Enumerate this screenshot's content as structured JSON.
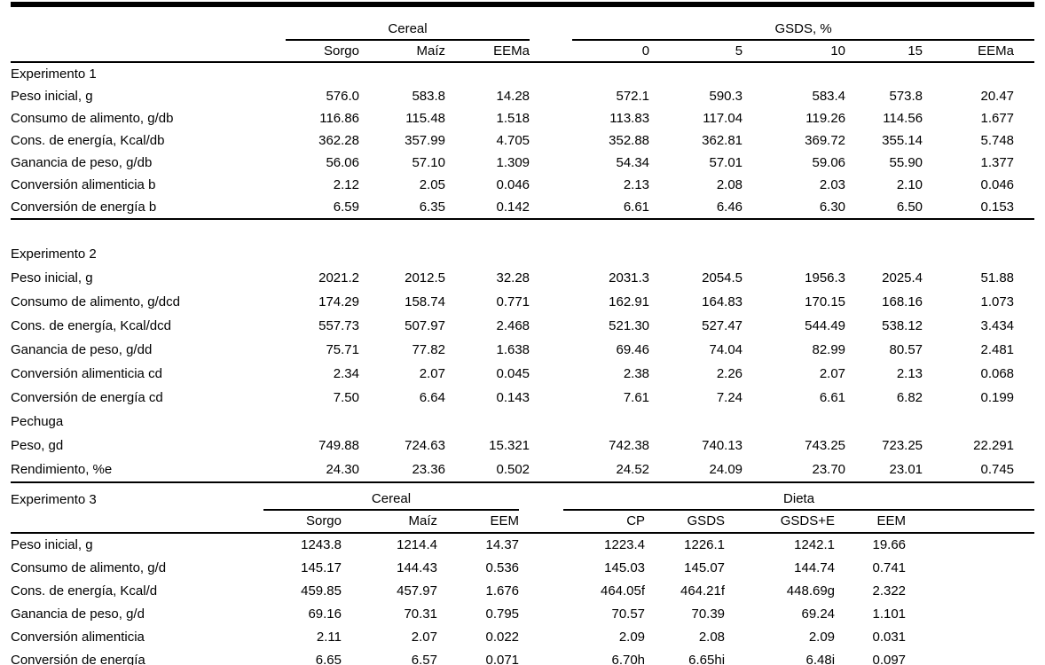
{
  "colors": {
    "background": "#ffffff",
    "text": "#000000",
    "rule": "#000000"
  },
  "table_top": {
    "groups": [
      {
        "label": "Cereal",
        "cols": [
          "Sorgo",
          "Maíz",
          "EEMa"
        ]
      },
      {
        "label": "GSDS, %",
        "cols": [
          "0",
          "5",
          "10",
          "15",
          "EEMa"
        ]
      }
    ],
    "sections": [
      {
        "title": "Experimento 1",
        "rows": [
          {
            "label": "Peso inicial, g",
            "values": [
              "576.0",
              "583.8",
              "14.28",
              "572.1",
              "590.3",
              "583.4",
              "573.8",
              "20.47"
            ]
          },
          {
            "label": "Consumo de alimento, g/db",
            "values": [
              "116.86",
              "115.48",
              "1.518",
              "113.83",
              "117.04",
              "119.26",
              "114.56",
              "1.677"
            ]
          },
          {
            "label": "Cons. de energía, Kcal/db",
            "values": [
              "362.28",
              "357.99",
              "4.705",
              "352.88",
              "362.81",
              "369.72",
              "355.14",
              "5.748"
            ]
          },
          {
            "label": "Ganancia de peso, g/db",
            "values": [
              "56.06",
              "57.10",
              "1.309",
              "54.34",
              "57.01",
              "59.06",
              "55.90",
              "1.377"
            ]
          },
          {
            "label": "Conversión alimenticia b",
            "values": [
              "2.12",
              "2.05",
              "0.046",
              "2.13",
              "2.08",
              "2.03",
              "2.10",
              "0.046"
            ]
          },
          {
            "label": "Conversión de energía b",
            "values": [
              "6.59",
              "6.35",
              "0.142",
              "6.61",
              "6.46",
              "6.30",
              "6.50",
              "0.153"
            ]
          }
        ]
      },
      {
        "title": "Experimento 2",
        "rows": [
          {
            "label": "Peso inicial, g",
            "values": [
              "2021.2",
              "2012.5",
              "32.28",
              "2031.3",
              "2054.5",
              "1956.3",
              "2025.4",
              "51.88"
            ]
          },
          {
            "label": "Consumo de alimento, g/dcd",
            "values": [
              "174.29",
              "158.74",
              "0.771",
              "162.91",
              "164.83",
              "170.15",
              "168.16",
              "1.073"
            ]
          },
          {
            "label": "Cons. de energía, Kcal/dcd",
            "values": [
              "557.73",
              "507.97",
              "2.468",
              "521.30",
              "527.47",
              "544.49",
              "538.12",
              "3.434"
            ]
          },
          {
            "label": "Ganancia de peso, g/dd",
            "values": [
              "75.71",
              "77.82",
              "1.638",
              "69.46",
              "74.04",
              "82.99",
              "80.57",
              "2.481"
            ]
          },
          {
            "label": "Conversión alimenticia cd",
            "values": [
              "2.34",
              "2.07",
              "0.045",
              "2.38",
              "2.26",
              "2.07",
              "2.13",
              "0.068"
            ]
          },
          {
            "label": "Conversión de energía cd",
            "values": [
              "7.50",
              "6.64",
              "0.143",
              "7.61",
              "7.24",
              "6.61",
              "6.82",
              "0.199"
            ]
          },
          {
            "label": "Pechuga",
            "values": []
          },
          {
            "label": "Peso, gd",
            "values": [
              "749.88",
              "724.63",
              "15.321",
              "742.38",
              "740.13",
              "743.25",
              "723.25",
              "22.291"
            ]
          },
          {
            "label": "Rendimiento, %e",
            "values": [
              "24.30",
              "23.36",
              "0.502",
              "24.52",
              "24.09",
              "23.70",
              "23.01",
              "0.745"
            ]
          }
        ]
      }
    ]
  },
  "table_exp3": {
    "title": "Experimento 3",
    "groups": [
      {
        "label": "Cereal",
        "cols": [
          "Sorgo",
          "Maíz",
          "EEM"
        ]
      },
      {
        "label": "Dieta",
        "cols": [
          "CP",
          "GSDS",
          "GSDS+E",
          "EEM"
        ]
      }
    ],
    "rows": [
      {
        "label": "Peso inicial, g",
        "values": [
          "1243.8",
          "1214.4",
          "14.37",
          "1223.4",
          "1226.1",
          "1242.1",
          "19.66"
        ]
      },
      {
        "label": "Consumo de alimento, g/d",
        "values": [
          "145.17",
          "144.43",
          "0.536",
          "145.03",
          "145.07",
          "144.74",
          "0.741"
        ]
      },
      {
        "label": "Cons. de energía, Kcal/d",
        "values": [
          "459.85",
          "457.97",
          "1.676",
          "464.05f",
          "464.21f",
          "448.69g",
          "2.322"
        ]
      },
      {
        "label": "Ganancia de peso, g/d",
        "values": [
          "69.16",
          "70.31",
          "0.795",
          "70.57",
          "70.39",
          "69.24",
          "1.101"
        ]
      },
      {
        "label": "Conversión alimenticia",
        "values": [
          "2.11",
          "2.07",
          "0.022",
          "2.09",
          "2.08",
          "2.09",
          "0.031"
        ]
      },
      {
        "label": "Conversión de energía",
        "values": [
          "6.65",
          "6.57",
          "0.071",
          "6.70h",
          "6.65hi",
          "6.48i",
          "0.097"
        ]
      }
    ]
  }
}
